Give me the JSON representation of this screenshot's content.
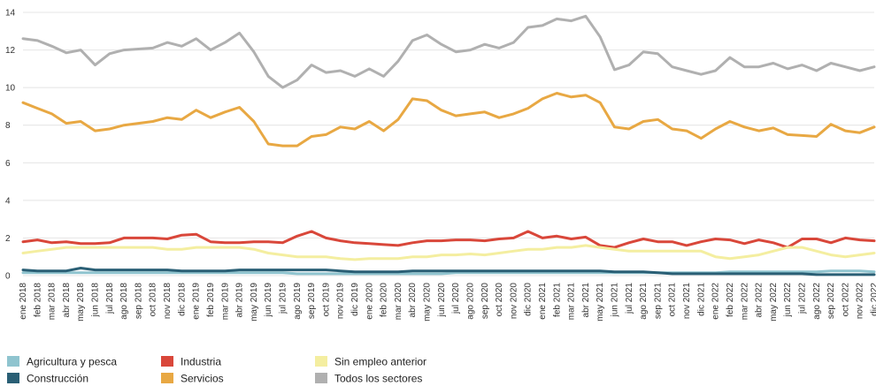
{
  "chart_data": {
    "type": "line",
    "title": "",
    "xlabel": "",
    "ylabel": "",
    "ylim": [
      0,
      14
    ],
    "yticks": [
      0,
      2,
      4,
      6,
      8,
      10,
      12,
      14
    ],
    "grid": "horizontal",
    "legend_position": "bottom-left",
    "x": [
      "ene 2018",
      "feb 2018",
      "mar 2018",
      "abr 2018",
      "may 2018",
      "jun 2018",
      "jul 2018",
      "ago 2018",
      "sep 2018",
      "oct 2018",
      "nov 2018",
      "dic 2018",
      "ene 2019",
      "feb 2019",
      "mar 2019",
      "abr 2019",
      "may 2019",
      "jun 2019",
      "jul 2019",
      "ago 2019",
      "sep 2019",
      "oct 2019",
      "nov 2019",
      "dic 2019",
      "ene 2020",
      "feb 2020",
      "mar 2020",
      "abr 2020",
      "may 2020",
      "jun 2020",
      "jul 2020",
      "ago 2020",
      "sep 2020",
      "oct 2020",
      "nov 2020",
      "dic 2020",
      "ene 2021",
      "feb 2021",
      "mar 2021",
      "abr 2021",
      "may 2021",
      "jun 2021",
      "jul 2021",
      "ago 2021",
      "sep 2021",
      "oct 2021",
      "nov 2021",
      "dic 2021",
      "ene 2022",
      "feb 2022",
      "mar 2022",
      "abr 2022",
      "may 2022",
      "jun 2022",
      "jul 2022",
      "ago 2022",
      "sep 2022",
      "oct 2022",
      "nov 2022",
      "dic 2022"
    ],
    "series": [
      {
        "name": "Agricultura y pesca",
        "color": "#8fc4cf",
        "values": [
          0.15,
          0.15,
          0.15,
          0.15,
          0.15,
          0.15,
          0.15,
          0.15,
          0.15,
          0.15,
          0.15,
          0.15,
          0.15,
          0.15,
          0.15,
          0.15,
          0.15,
          0.15,
          0.15,
          0.1,
          0.1,
          0.1,
          0.1,
          0.1,
          0.1,
          0.1,
          0.1,
          0.1,
          0.1,
          0.1,
          0.15,
          0.15,
          0.15,
          0.15,
          0.15,
          0.15,
          0.15,
          0.15,
          0.15,
          0.15,
          0.15,
          0.15,
          0.15,
          0.15,
          0.15,
          0.15,
          0.15,
          0.15,
          0.15,
          0.2,
          0.2,
          0.2,
          0.2,
          0.2,
          0.2,
          0.2,
          0.25,
          0.25,
          0.25,
          0.2
        ]
      },
      {
        "name": "Construcción",
        "color": "#2a5f75",
        "values": [
          0.3,
          0.25,
          0.25,
          0.25,
          0.4,
          0.3,
          0.3,
          0.3,
          0.3,
          0.3,
          0.3,
          0.25,
          0.25,
          0.25,
          0.25,
          0.3,
          0.3,
          0.3,
          0.3,
          0.3,
          0.3,
          0.3,
          0.25,
          0.2,
          0.2,
          0.2,
          0.2,
          0.25,
          0.25,
          0.25,
          0.25,
          0.25,
          0.25,
          0.25,
          0.25,
          0.25,
          0.25,
          0.25,
          0.25,
          0.25,
          0.25,
          0.2,
          0.2,
          0.2,
          0.15,
          0.1,
          0.1,
          0.1,
          0.1,
          0.1,
          0.1,
          0.1,
          0.1,
          0.1,
          0.1,
          0.05,
          0.05,
          0.05,
          0.05,
          0.05
        ]
      },
      {
        "name": "Industria",
        "color": "#d9473a",
        "values": [
          1.8,
          1.9,
          1.75,
          1.8,
          1.7,
          1.7,
          1.75,
          2.0,
          2.0,
          2.0,
          1.95,
          2.15,
          2.2,
          1.8,
          1.75,
          1.75,
          1.8,
          1.8,
          1.75,
          2.1,
          2.35,
          2.0,
          1.85,
          1.75,
          1.7,
          1.65,
          1.6,
          1.75,
          1.85,
          1.85,
          1.9,
          1.9,
          1.85,
          1.95,
          2.0,
          2.35,
          2.0,
          2.1,
          1.95,
          2.05,
          1.6,
          1.5,
          1.75,
          1.95,
          1.8,
          1.8,
          1.6,
          1.8,
          1.95,
          1.9,
          1.7,
          1.9,
          1.75,
          1.5,
          1.95,
          1.95,
          1.75,
          2.0,
          1.9,
          1.85
        ]
      },
      {
        "name": "Servicios",
        "color": "#e8a843",
        "values": [
          9.2,
          8.9,
          8.6,
          8.1,
          8.2,
          7.7,
          7.8,
          8.0,
          8.1,
          8.2,
          8.4,
          8.3,
          8.8,
          8.4,
          8.7,
          8.95,
          8.2,
          7.0,
          6.9,
          6.9,
          7.4,
          7.5,
          7.9,
          7.8,
          8.2,
          7.7,
          8.3,
          9.4,
          9.3,
          8.8,
          8.5,
          8.6,
          8.7,
          8.4,
          8.6,
          8.9,
          9.4,
          9.7,
          9.5,
          9.6,
          9.2,
          7.9,
          7.8,
          8.2,
          8.3,
          7.8,
          7.7,
          7.3,
          7.8,
          8.2,
          7.9,
          7.7,
          7.85,
          7.5,
          7.45,
          7.4,
          8.05,
          7.7,
          7.6,
          7.9
        ]
      },
      {
        "name": "Sin empleo anterior",
        "color": "#f4eea0",
        "values": [
          1.2,
          1.3,
          1.4,
          1.5,
          1.5,
          1.5,
          1.5,
          1.5,
          1.5,
          1.5,
          1.4,
          1.4,
          1.5,
          1.5,
          1.5,
          1.5,
          1.4,
          1.2,
          1.1,
          1.0,
          1.0,
          1.0,
          0.9,
          0.85,
          0.9,
          0.9,
          0.9,
          1.0,
          1.0,
          1.1,
          1.1,
          1.15,
          1.1,
          1.2,
          1.3,
          1.4,
          1.4,
          1.5,
          1.5,
          1.6,
          1.5,
          1.4,
          1.3,
          1.3,
          1.3,
          1.3,
          1.3,
          1.3,
          1.0,
          0.9,
          1.0,
          1.1,
          1.3,
          1.5,
          1.5,
          1.3,
          1.1,
          1.0,
          1.1,
          1.2
        ]
      },
      {
        "name": "Todos los sectores",
        "color": "#b0b0b0",
        "values": [
          12.6,
          12.5,
          12.2,
          11.85,
          12.0,
          11.2,
          11.8,
          12.0,
          12.05,
          12.1,
          12.4,
          12.2,
          12.6,
          12.0,
          12.4,
          12.9,
          11.9,
          10.6,
          10.0,
          10.4,
          11.2,
          10.8,
          10.9,
          10.6,
          11.0,
          10.6,
          11.4,
          12.5,
          12.8,
          12.3,
          11.9,
          12.0,
          12.3,
          12.1,
          12.4,
          13.2,
          13.3,
          13.65,
          13.55,
          13.8,
          12.7,
          10.95,
          11.2,
          11.9,
          11.8,
          11.1,
          10.9,
          10.7,
          10.9,
          11.6,
          11.1,
          11.1,
          11.3,
          11.0,
          11.2,
          10.9,
          11.3,
          11.1,
          10.9,
          11.1
        ]
      }
    ]
  }
}
